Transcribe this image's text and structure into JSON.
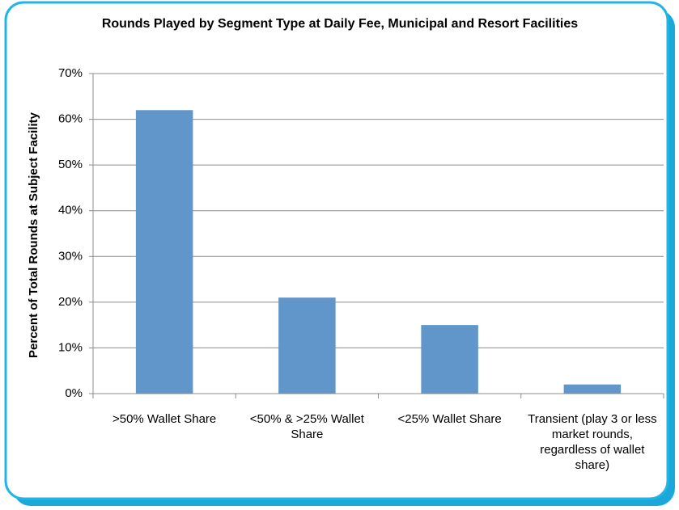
{
  "chart_data": {
    "type": "bar",
    "title": "Rounds Played by Segment Type at Daily Fee, Municipal and Resort Facilities",
    "y_label": "Percent of Total Rounds at Subject Facility",
    "categories": [
      ">50% Wallet Share",
      "<50% & >25% Wallet Share",
      "<25% Wallet Share",
      "Transient (play 3 or less market rounds, regardless of wallet share)"
    ],
    "values": [
      62,
      21,
      15,
      2
    ],
    "color": "#6096c9",
    "ylim": [
      0,
      70
    ],
    "yticks": [
      {
        "value": 0,
        "label": "0%"
      },
      {
        "value": 10,
        "label": "10%"
      },
      {
        "value": 20,
        "label": "20%"
      },
      {
        "value": 30,
        "label": "30%"
      },
      {
        "value": 40,
        "label": "40%"
      },
      {
        "value": 50,
        "label": "50%"
      },
      {
        "value": 60,
        "label": "60%"
      },
      {
        "value": 70,
        "label": "70%"
      }
    ],
    "grid": true
  }
}
